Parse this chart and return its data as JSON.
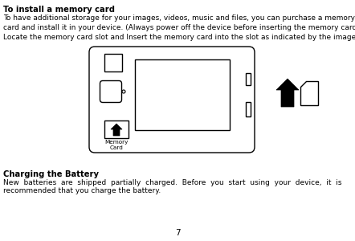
{
  "bg_color": "#ffffff",
  "title1": "To install a memory card",
  "para1": "To have additional storage for your images, videos, music and files, you can purchase a memory\ncard and install it in your device. (Always power off the device before inserting the memory card)\nLocate the memory card slot and Insert the memory card into the slot as indicated by the image.",
  "title2": "Charging the Battery",
  "para2_line1": "New  batteries  are  shipped  partially  charged.  Before  you  start  using  your  device,  it  is",
  "para2_line2": "recommended that you charge the battery.",
  "page_num": "7",
  "memory_card_label": "Memory\nCard"
}
